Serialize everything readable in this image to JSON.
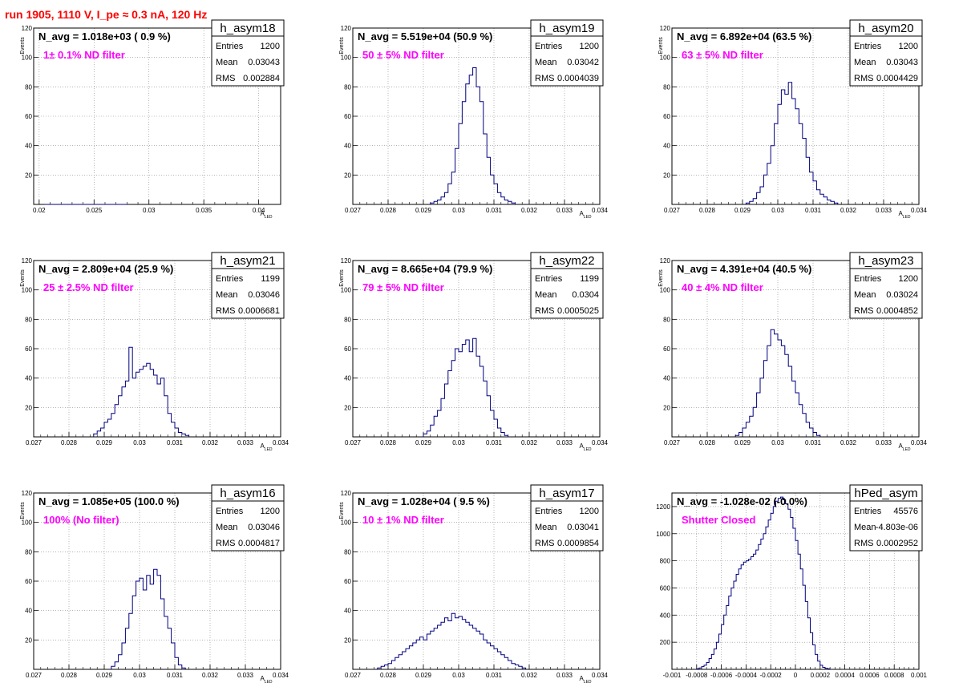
{
  "header": {
    "title": "run 1905,  1110 V, I_pe ≈ 0.3 nA, 120 Hz"
  },
  "colors": {
    "hist": "#000080",
    "annotation": "#ff00ff",
    "title": "#ff0000",
    "grid": "#888888"
  },
  "chart_data": [
    {
      "type": "histogram",
      "name": "h_asym18",
      "navg": "N_avg = 1.018e+03 ( 0.9 %)",
      "label": "1± 0.1% ND filter",
      "stats": {
        "entries": "1200",
        "mean": "0.03043",
        "rms": "0.002884"
      },
      "xlabel": "A_LED",
      "ylabel": "Events",
      "xlim": [
        0.0195,
        0.042
      ],
      "ylim": [
        0,
        120
      ],
      "xticks": [
        0.02,
        0.025,
        0.03,
        0.035,
        0.04
      ],
      "xticklabels": [
        "0.02",
        "0.025",
        "0.03",
        "0.035",
        "0.04"
      ],
      "yticks": [
        20,
        40,
        60,
        80,
        100,
        120
      ],
      "bin_start": 0.0205,
      "bin_width": 0.00025,
      "counts": [
        0,
        0,
        0,
        0,
        0,
        0,
        0,
        0,
        0,
        0,
        0,
        0,
        0,
        0,
        0,
        0,
        0,
        0,
        0,
        0,
        0,
        0,
        0,
        0,
        0,
        0,
        0,
        0,
        0,
        0
      ]
    },
    {
      "type": "histogram",
      "name": "h_asym19",
      "navg": "N_avg = 5.519e+04 (50.9 %)",
      "label": "50 ± 5% ND filter",
      "stats": {
        "entries": "1200",
        "mean": "0.03042",
        "rms": "0.0004039"
      },
      "xlabel": "A_LED",
      "ylabel": "Events",
      "xlim": [
        0.027,
        0.034
      ],
      "ylim": [
        0,
        120
      ],
      "xticks": [
        0.027,
        0.028,
        0.029,
        0.03,
        0.031,
        0.032,
        0.033,
        0.034
      ],
      "xticklabels": [
        "0.027",
        "0.028",
        "0.029",
        "0.03",
        "0.031",
        "0.032",
        "0.033",
        "0.034"
      ],
      "yticks": [
        20,
        40,
        60,
        80,
        100,
        120
      ],
      "bin_start": 0.0292,
      "bin_width": 0.0001,
      "counts": [
        1,
        2,
        3,
        5,
        8,
        14,
        22,
        38,
        55,
        70,
        82,
        88,
        93,
        80,
        70,
        48,
        32,
        20,
        14,
        8,
        5,
        3,
        2,
        1
      ]
    },
    {
      "type": "histogram",
      "name": "h_asym20",
      "navg": "N_avg = 6.892e+04 (63.5 %)",
      "label": "63 ± 5% ND filter",
      "stats": {
        "entries": "1200",
        "mean": "0.03043",
        "rms": "0.0004429"
      },
      "xlabel": "A_LED",
      "ylabel": "Events",
      "xlim": [
        0.027,
        0.034
      ],
      "ylim": [
        0,
        120
      ],
      "xticks": [
        0.027,
        0.028,
        0.029,
        0.03,
        0.031,
        0.032,
        0.033,
        0.034
      ],
      "xticklabels": [
        "0.027",
        "0.028",
        "0.029",
        "0.03",
        "0.031",
        "0.032",
        "0.033",
        "0.034"
      ],
      "yticks": [
        20,
        40,
        60,
        80,
        100,
        120
      ],
      "bin_start": 0.0291,
      "bin_width": 0.0001,
      "counts": [
        1,
        2,
        4,
        8,
        12,
        20,
        28,
        40,
        55,
        68,
        78,
        75,
        83,
        72,
        65,
        55,
        45,
        32,
        22,
        16,
        10,
        7,
        5,
        3,
        2,
        1
      ]
    },
    {
      "type": "histogram",
      "name": "h_asym21",
      "navg": "N_avg = 2.809e+04 (25.9 %)",
      "label": "25 ± 2.5% ND filter",
      "stats": {
        "entries": "1199",
        "mean": "0.03046",
        "rms": "0.0006681"
      },
      "xlabel": "A_LED",
      "ylabel": "Events",
      "xlim": [
        0.027,
        0.034
      ],
      "ylim": [
        0,
        120
      ],
      "xticks": [
        0.027,
        0.028,
        0.029,
        0.03,
        0.031,
        0.032,
        0.033,
        0.034
      ],
      "xticklabels": [
        "0.027",
        "0.028",
        "0.029",
        "0.03",
        "0.031",
        "0.032",
        "0.033",
        "0.034"
      ],
      "yticks": [
        20,
        40,
        60,
        80,
        100,
        120
      ],
      "bin_start": 0.0287,
      "bin_width": 0.0001,
      "counts": [
        2,
        4,
        6,
        10,
        12,
        16,
        22,
        28,
        34,
        38,
        61,
        40,
        44,
        46,
        48,
        50,
        46,
        42,
        36,
        40,
        28,
        16,
        10,
        6,
        3,
        2,
        1
      ]
    },
    {
      "type": "histogram",
      "name": "h_asym22",
      "navg": "N_avg = 8.665e+04 (79.9 %)",
      "label": "79 ± 5% ND filter",
      "stats": {
        "entries": "1199",
        "mean": "0.0304",
        "rms": "0.0005025"
      },
      "xlabel": "A_LED",
      "ylabel": "Events",
      "xlim": [
        0.027,
        0.034
      ],
      "ylim": [
        0,
        120
      ],
      "xticks": [
        0.027,
        0.028,
        0.029,
        0.03,
        0.031,
        0.032,
        0.033,
        0.034
      ],
      "xticklabels": [
        "0.027",
        "0.028",
        "0.029",
        "0.03",
        "0.031",
        "0.032",
        "0.033",
        "0.034"
      ],
      "yticks": [
        20,
        40,
        60,
        80,
        100,
        120
      ],
      "bin_start": 0.029,
      "bin_width": 0.0001,
      "counts": [
        2,
        4,
        8,
        14,
        18,
        26,
        36,
        45,
        52,
        60,
        58,
        63,
        66,
        58,
        67,
        55,
        48,
        38,
        28,
        18,
        12,
        6,
        3,
        1
      ]
    },
    {
      "type": "histogram",
      "name": "h_asym23",
      "navg": "N_avg = 4.391e+04 (40.5 %)",
      "label": "40 ± 4% ND filter",
      "stats": {
        "entries": "1200",
        "mean": "0.03024",
        "rms": "0.0004852"
      },
      "xlabel": "A_LED",
      "ylabel": "Events",
      "xlim": [
        0.027,
        0.034
      ],
      "ylim": [
        0,
        120
      ],
      "xticks": [
        0.027,
        0.028,
        0.029,
        0.03,
        0.031,
        0.032,
        0.033,
        0.034
      ],
      "xticklabels": [
        "0.027",
        "0.028",
        "0.029",
        "0.03",
        "0.031",
        "0.032",
        "0.033",
        "0.034"
      ],
      "yticks": [
        20,
        40,
        60,
        80,
        100,
        120
      ],
      "bin_start": 0.0288,
      "bin_width": 0.0001,
      "counts": [
        1,
        3,
        6,
        10,
        14,
        20,
        30,
        40,
        52,
        62,
        73,
        70,
        66,
        62,
        56,
        48,
        38,
        30,
        22,
        16,
        10,
        6,
        3,
        1
      ]
    },
    {
      "type": "histogram",
      "name": "h_asym16",
      "navg": "N_avg = 1.085e+05 (100.0 %)",
      "label": "100% (No filter)",
      "stats": {
        "entries": "1200",
        "mean": "0.03046",
        "rms": "0.0004817"
      },
      "xlabel": "A_LED",
      "ylabel": "Events",
      "xlim": [
        0.027,
        0.034
      ],
      "ylim": [
        0,
        120
      ],
      "xticks": [
        0.027,
        0.028,
        0.029,
        0.03,
        0.031,
        0.032,
        0.033,
        0.034
      ],
      "xticklabels": [
        "0.027",
        "0.028",
        "0.029",
        "0.03",
        "0.031",
        "0.032",
        "0.033",
        "0.034"
      ],
      "yticks": [
        20,
        40,
        60,
        80,
        100,
        120
      ],
      "bin_start": 0.0292,
      "bin_width": 0.0001,
      "counts": [
        2,
        5,
        10,
        18,
        28,
        38,
        50,
        60,
        62,
        54,
        64,
        58,
        68,
        64,
        48,
        36,
        28,
        18,
        8,
        3,
        1
      ]
    },
    {
      "type": "histogram",
      "name": "h_asym17",
      "navg": "N_avg = 1.028e+04 ( 9.5 %)",
      "label": "10 ± 1% ND filter",
      "stats": {
        "entries": "1200",
        "mean": "0.03041",
        "rms": "0.0009854"
      },
      "xlabel": "A_LED",
      "ylabel": "Events",
      "xlim": [
        0.027,
        0.034
      ],
      "ylim": [
        0,
        120
      ],
      "xticks": [
        0.027,
        0.028,
        0.029,
        0.03,
        0.031,
        0.032,
        0.033,
        0.034
      ],
      "xticklabels": [
        "0.027",
        "0.028",
        "0.029",
        "0.03",
        "0.031",
        "0.032",
        "0.033",
        "0.034"
      ],
      "yticks": [
        20,
        40,
        60,
        80,
        100,
        120
      ],
      "bin_start": 0.0277,
      "bin_width": 0.0001,
      "counts": [
        1,
        2,
        3,
        4,
        6,
        8,
        10,
        12,
        14,
        16,
        18,
        20,
        22,
        20,
        24,
        26,
        28,
        30,
        32,
        35,
        33,
        38,
        35,
        36,
        34,
        32,
        30,
        28,
        26,
        24,
        20,
        18,
        16,
        14,
        12,
        10,
        8,
        6,
        4,
        3,
        2,
        1
      ]
    },
    {
      "type": "histogram",
      "name": "hPed_asym",
      "navg": "N_avg = -1.028e-02 (-0.0%)",
      "label": "Shutter Closed",
      "stats": {
        "entries": "45576",
        "mean": "-4.803e-06",
        "rms": "0.0002952"
      },
      "xlabel": "",
      "ylabel": "",
      "xlim": [
        -0.001,
        0.001
      ],
      "ylim": [
        0,
        1300
      ],
      "xticks": [
        -0.001,
        -0.0008,
        -0.0006,
        -0.0004,
        -0.0002,
        0,
        0.0002,
        0.0004,
        0.0006,
        0.0008,
        0.001
      ],
      "xticklabels": [
        "-0.001",
        "-0.0008",
        "-0.0006",
        "-0.0004",
        "-0.0002",
        "0",
        "0.0002",
        "0.0004",
        "0.0006",
        "0.0008",
        "0.001"
      ],
      "yticks": [
        200,
        400,
        600,
        800,
        1000,
        1200
      ],
      "bin_start": -0.0008,
      "bin_width": 2e-05,
      "counts": [
        5,
        10,
        20,
        30,
        50,
        80,
        110,
        150,
        200,
        260,
        330,
        400,
        470,
        540,
        600,
        650,
        700,
        740,
        770,
        790,
        800,
        810,
        830,
        850,
        880,
        920,
        960,
        1000,
        1050,
        1100,
        1150,
        1200,
        1240,
        1260,
        1270,
        1250,
        1220,
        1180,
        1120,
        1040,
        950,
        850,
        740,
        620,
        500,
        380,
        270,
        180,
        110,
        60,
        30,
        15,
        8,
        4
      ]
    }
  ]
}
